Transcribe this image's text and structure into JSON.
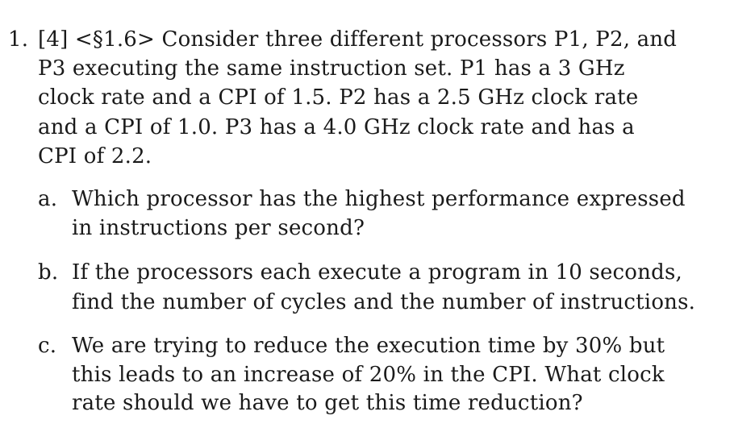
{
  "problem": {
    "number": "1.",
    "lines": [
      "[4] <§1.6> Consider three different processors P1, P2, and",
      "P3 executing the same instruction set. P1 has a 3 GHz",
      "clock rate and a CPI of 1.5. P2 has a 2.5 GHz clock rate",
      "and a CPI of 1.0. P3 has a 4.0 GHz clock rate and has a",
      "CPI of 2.2."
    ],
    "parts": [
      {
        "label": "a.",
        "lines": [
          "Which processor has the highest performance expressed",
          "in instructions per second?"
        ]
      },
      {
        "label": "b.",
        "lines": [
          "If the processors each execute a program in 10 seconds,",
          "find the number of cycles and the number of instructions."
        ]
      },
      {
        "label": "c.",
        "lines": [
          "We are trying to reduce the execution time by 30% but",
          "this leads to an increase of 20% in the CPI. What clock",
          "rate should we have to get this time reduction?"
        ]
      }
    ]
  }
}
